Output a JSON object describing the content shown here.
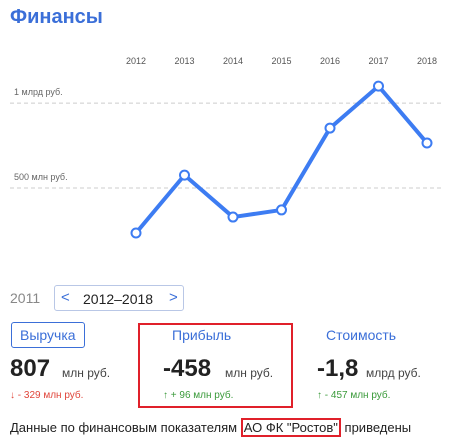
{
  "header": {
    "title": "Финансы"
  },
  "chart_data": {
    "type": "line",
    "categories": [
      "2012",
      "2013",
      "2014",
      "2015",
      "2016",
      "2017",
      "2018"
    ],
    "values": [
      235,
      576,
      329,
      371,
      853,
      1100,
      765
    ],
    "color": "#3d7cf2",
    "ylim": [
      135,
      1195
    ],
    "yticks": [
      {
        "value": 500,
        "label": "500 млн руб."
      },
      {
        "value": 1000,
        "label": "1 млрд руб."
      }
    ],
    "grid": true
  },
  "nav": {
    "prev_year": "2011",
    "range": "2012–2018"
  },
  "cards": [
    {
      "title": "Выручка",
      "value": "807",
      "unit": "млн руб.",
      "change": "↓ - 329 млн руб."
    },
    {
      "title": "Прибыль",
      "value": "-458",
      "unit": "млн руб.",
      "change": "↑ + 96 млн руб."
    },
    {
      "title": "Стоимость",
      "value": "-1,8",
      "unit": "млрд руб.",
      "change": "↑ - 457 млн руб."
    }
  ],
  "footer": {
    "text_before": "Данные по финансовым показателям",
    "company": "АО ФК \"Ростов\"",
    "text_after": "приведены"
  }
}
